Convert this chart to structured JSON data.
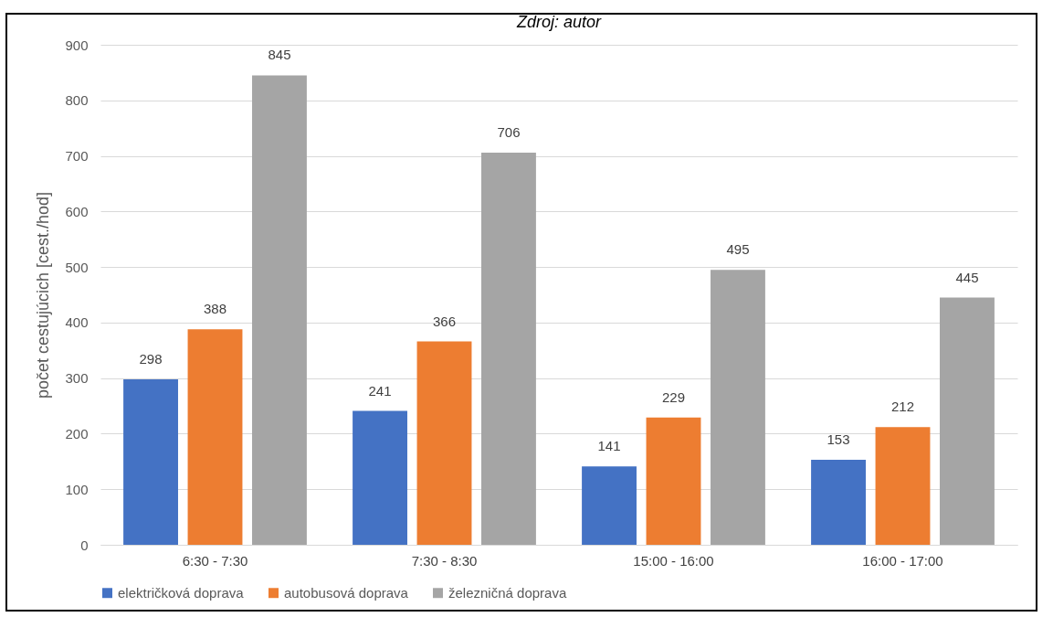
{
  "chart_data": {
    "type": "bar",
    "annotations": [
      "Zdroj: autor"
    ],
    "ylabel": "počet cestujúcich [cest./hod]",
    "categories": [
      "6:30 - 7:30",
      "7:30 - 8:30",
      "15:00 - 16:00",
      "16:00 - 17:00"
    ],
    "series": [
      {
        "name": "električková doprava",
        "color": "#4472c4",
        "values": [
          298,
          241,
          141,
          153
        ]
      },
      {
        "name": "autobusová doprava",
        "color": "#ed7d31",
        "values": [
          388,
          366,
          229,
          212
        ]
      },
      {
        "name": "železničná doprava",
        "color": "#a5a5a5",
        "values": [
          845,
          706,
          495,
          445
        ]
      }
    ],
    "ylim": [
      0,
      900
    ],
    "yticks": [
      0,
      100,
      200,
      300,
      400,
      500,
      600,
      700,
      800,
      900
    ],
    "grid": "y",
    "legend": "bottom",
    "data_labels": true
  }
}
